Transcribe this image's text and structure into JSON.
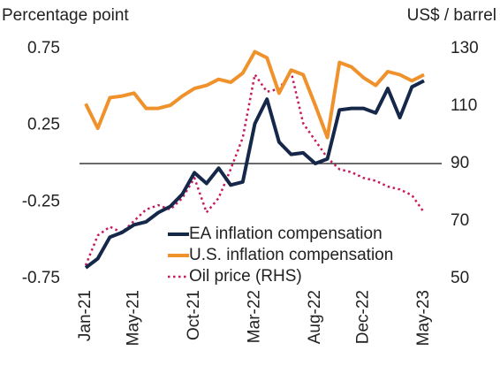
{
  "chart_data": {
    "type": "line",
    "y_label": "Percentage point",
    "y2_label": "US$ / barrel",
    "categories": [
      "Jan-21",
      null,
      null,
      null,
      "May-21",
      null,
      null,
      null,
      null,
      "Oct-21",
      null,
      null,
      null,
      null,
      "Mar-22",
      null,
      null,
      null,
      null,
      "Aug-22",
      null,
      null,
      null,
      "Dec-22",
      null,
      null,
      null,
      null,
      "May-23"
    ],
    "series": [
      {
        "name": "EA inflation compensation",
        "color": "#16284a",
        "values": [
          -0.68,
          -0.62,
          -0.48,
          -0.45,
          -0.4,
          -0.38,
          -0.32,
          -0.28,
          -0.2,
          -0.06,
          -0.13,
          -0.03,
          -0.14,
          -0.12,
          0.26,
          0.42,
          0.14,
          0.06,
          0.07,
          0.0,
          0.03,
          0.35,
          0.36,
          0.36,
          0.33,
          0.49,
          0.3,
          0.5,
          0.54
        ]
      },
      {
        "name": "U.S. inflation compensation",
        "color": "#f0922c",
        "values": [
          0.39,
          0.23,
          0.43,
          0.44,
          0.46,
          0.36,
          0.36,
          0.38,
          0.44,
          0.49,
          0.51,
          0.55,
          0.53,
          0.59,
          0.73,
          0.69,
          0.46,
          0.61,
          0.58,
          0.38,
          0.17,
          0.66,
          0.63,
          0.56,
          0.51,
          0.6,
          0.58,
          0.54,
          0.58
        ]
      },
      {
        "name": "Oil price (RHS)",
        "color": "#c8195e",
        "axis": "y2",
        "dashed": true,
        "values": [
          54.6,
          65,
          68,
          66,
          70,
          74,
          75.5,
          74,
          78,
          85,
          73,
          78,
          88,
          99,
          121,
          115,
          116,
          122,
          104,
          98,
          92,
          88,
          87,
          85,
          84,
          82,
          81,
          79,
          73
        ]
      }
    ],
    "ylim": [
      -0.75,
      0.75
    ],
    "yticks": [
      0.75,
      0.25,
      -0.25,
      -0.75
    ],
    "y2lim": [
      50,
      130
    ],
    "y2ticks": [
      130,
      110,
      90,
      70,
      50
    ],
    "reference_line": 0
  }
}
